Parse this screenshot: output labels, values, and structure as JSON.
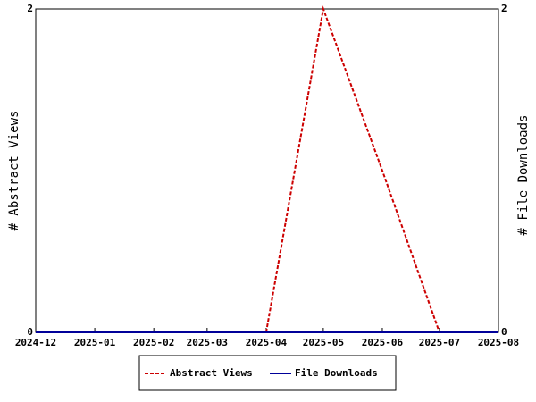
{
  "chart_data": {
    "type": "line",
    "ylabel": "# Abstract Views",
    "y2label": "# File Downloads",
    "x": [
      "2024-12",
      "2025-01",
      "2025-02",
      "2025-03",
      "2025-04",
      "2025-05",
      "2025-06",
      "2025-07",
      "2025-08"
    ],
    "series": [
      {
        "name": "Abstract Views",
        "color": "#cc0000",
        "dashed": true,
        "values": [
          0,
          0,
          0,
          0,
          0,
          2,
          1,
          0,
          0
        ]
      },
      {
        "name": "File Downloads",
        "color": "#000099",
        "dashed": false,
        "axis": "y2",
        "values": [
          0,
          0,
          0,
          0,
          0,
          0,
          0,
          0,
          0
        ]
      }
    ],
    "ylim": [
      0,
      2
    ],
    "yticks": [
      0,
      2
    ],
    "y2lim": [
      0,
      2
    ],
    "y2ticks": [
      0,
      2
    ],
    "legend": "bottom"
  }
}
